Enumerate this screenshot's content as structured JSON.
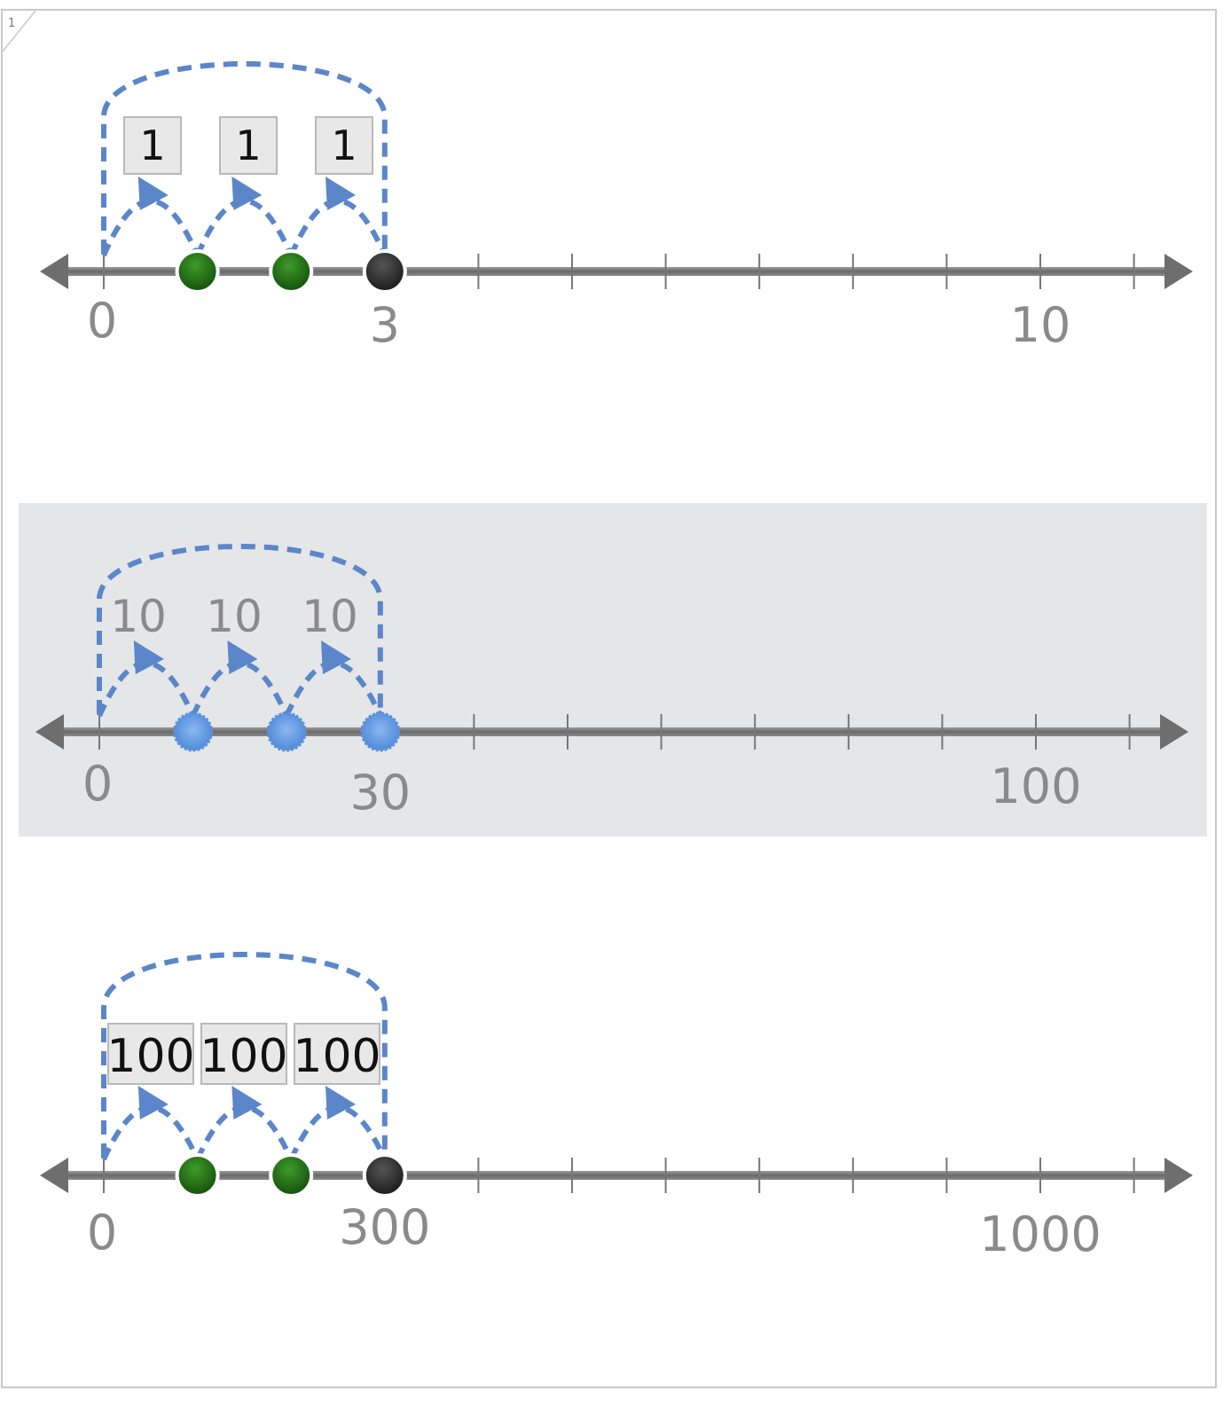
{
  "page": {
    "corner_mark": "1"
  },
  "colors": {
    "arc": "#5b86c9",
    "axis": "#707070",
    "label": "#8a8a8a",
    "band": "#e5e6e8",
    "box_fill": "#e8e8e8",
    "box_border": "#b8b8b8",
    "box_text": "#111111",
    "dot_green": "#1e6b12",
    "dot_black": "#2a2a2a",
    "dot_blue": "#6aa0e4"
  },
  "number_lines": [
    {
      "id": "ones",
      "shaded": false,
      "label_style": "boxed",
      "jump_labels": [
        "1",
        "1",
        "1"
      ],
      "end_label": "3",
      "ticks": {
        "start": "0",
        "end": "10"
      },
      "dots": [
        "green",
        "green",
        "black"
      ]
    },
    {
      "id": "tens",
      "shaded": true,
      "label_style": "plain",
      "jump_labels": [
        "10",
        "10",
        "10"
      ],
      "end_label": "30",
      "ticks": {
        "start": "0",
        "end": "100"
      },
      "dots": [
        "blue",
        "blue",
        "blue"
      ]
    },
    {
      "id": "hundreds",
      "shaded": false,
      "label_style": "boxed",
      "jump_labels": [
        "100",
        "100",
        "100"
      ],
      "end_label": "300",
      "ticks": {
        "start": "0",
        "end": "1000"
      },
      "dots": [
        "green",
        "green",
        "black"
      ]
    }
  ]
}
